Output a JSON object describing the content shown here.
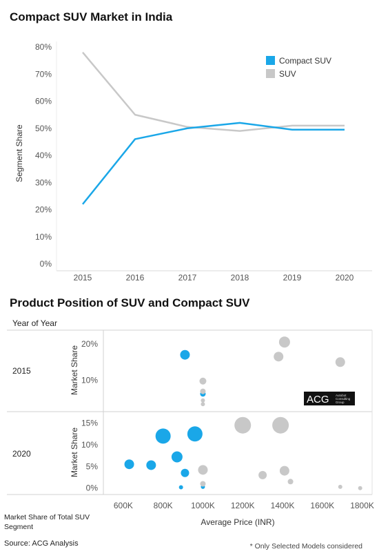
{
  "page": {
    "footer_source": "Source: ACG Analysis",
    "footer_note": "* Only Selected Models considered",
    "logo_text": "ACG",
    "logo_sub": [
      "Autobot",
      "Consulting",
      "Group"
    ]
  },
  "chart_data": [
    {
      "type": "line",
      "title": "Compact SUV Market in India",
      "xlabel": "",
      "ylabel": "Segment Share",
      "x": [
        "2015",
        "2016",
        "2017",
        "2018",
        "2019",
        "2020"
      ],
      "ylim": [
        0,
        80
      ],
      "yticks": [
        "0%",
        "10%",
        "20%",
        "30%",
        "40%",
        "50%",
        "60%",
        "70%",
        "80%"
      ],
      "legend_position": "top-right",
      "grid": false,
      "series": [
        {
          "name": "Compact SUV",
          "color": "#1aa7e8",
          "values": [
            22,
            46,
            50,
            52,
            49.5,
            49.5
          ]
        },
        {
          "name": "SUV",
          "color": "#c8c8c8",
          "values": [
            78,
            55,
            50.5,
            49,
            51,
            51
          ]
        }
      ]
    },
    {
      "type": "scatter",
      "title": "Product Position of SUV and Compact SUV",
      "facet_header": "Year of Year",
      "xlabel": "Average Price (INR)",
      "ylabel": "Market Share",
      "bottom_left_label": "Market Share of Total SUV Segment",
      "xlim": [
        500,
        1850
      ],
      "xticks": [
        {
          "v": 600,
          "label": "600K"
        },
        {
          "v": 800,
          "label": "800K"
        },
        {
          "v": 1000,
          "label": "1000K"
        },
        {
          "v": 1200,
          "label": "1200K"
        },
        {
          "v": 1400,
          "label": "1400K"
        },
        {
          "v": 1600,
          "label": "1600K"
        },
        {
          "v": 1800,
          "label": "1800K"
        }
      ],
      "panels": [
        {
          "year": "2015",
          "ylim": [
            2,
            23
          ],
          "yticks": [
            {
              "v": 10,
              "label": "10%"
            },
            {
              "v": 20,
              "label": "20%"
            }
          ],
          "points": [
            {
              "x": 910,
              "y": 17,
              "size": 7,
              "seg": "Compact SUV"
            },
            {
              "x": 1000,
              "y": 6.3,
              "size": 4,
              "seg": "Compact SUV"
            },
            {
              "x": 1000,
              "y": 9.8,
              "size": 5,
              "seg": "SUV"
            },
            {
              "x": 1000,
              "y": 7,
              "size": 4,
              "seg": "SUV"
            },
            {
              "x": 1000,
              "y": 4.5,
              "size": 3,
              "seg": "SUV"
            },
            {
              "x": 1000,
              "y": 3.5,
              "size": 3,
              "seg": "SUV"
            },
            {
              "x": 1410,
              "y": 20.5,
              "size": 8,
              "seg": "SUV"
            },
            {
              "x": 1380,
              "y": 16.5,
              "size": 7,
              "seg": "SUV"
            },
            {
              "x": 1690,
              "y": 15,
              "size": 7,
              "seg": "SUV"
            }
          ]
        },
        {
          "year": "2020",
          "ylim": [
            -1,
            17
          ],
          "yticks": [
            {
              "v": 0,
              "label": "0%"
            },
            {
              "v": 5,
              "label": "5%"
            },
            {
              "v": 10,
              "label": "10%"
            },
            {
              "v": 15,
              "label": "15%"
            }
          ],
          "points": [
            {
              "x": 630,
              "y": 5.5,
              "size": 7,
              "seg": "Compact SUV"
            },
            {
              "x": 740,
              "y": 5.3,
              "size": 7,
              "seg": "Compact SUV"
            },
            {
              "x": 800,
              "y": 12,
              "size": 11,
              "seg": "Compact SUV"
            },
            {
              "x": 960,
              "y": 12.5,
              "size": 11,
              "seg": "Compact SUV"
            },
            {
              "x": 870,
              "y": 7.2,
              "size": 8,
              "seg": "Compact SUV"
            },
            {
              "x": 910,
              "y": 3.5,
              "size": 6,
              "seg": "Compact SUV"
            },
            {
              "x": 890,
              "y": 0.2,
              "size": 3,
              "seg": "Compact SUV"
            },
            {
              "x": 1000,
              "y": 0.3,
              "size": 3,
              "seg": "Compact SUV"
            },
            {
              "x": 1000,
              "y": 4.2,
              "size": 7,
              "seg": "SUV"
            },
            {
              "x": 1000,
              "y": 1,
              "size": 4,
              "seg": "SUV"
            },
            {
              "x": 1200,
              "y": 14.5,
              "size": 12,
              "seg": "SUV"
            },
            {
              "x": 1390,
              "y": 14.5,
              "size": 12,
              "seg": "SUV"
            },
            {
              "x": 1300,
              "y": 3,
              "size": 6,
              "seg": "SUV"
            },
            {
              "x": 1410,
              "y": 4,
              "size": 7,
              "seg": "SUV"
            },
            {
              "x": 1440,
              "y": 1.5,
              "size": 4,
              "seg": "SUV"
            },
            {
              "x": 1690,
              "y": 0.3,
              "size": 3,
              "seg": "SUV"
            },
            {
              "x": 1790,
              "y": 0,
              "size": 3,
              "seg": "SUV"
            }
          ]
        }
      ],
      "colors": {
        "Compact SUV": "#1aa7e8",
        "SUV": "#c8c8c8"
      }
    }
  ]
}
